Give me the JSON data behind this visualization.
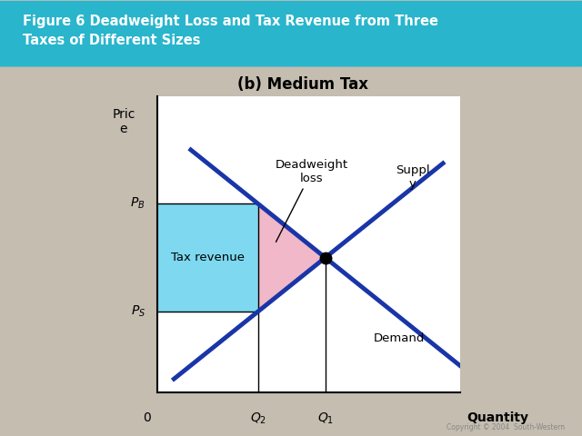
{
  "title_box_text": "Figure 6 Deadweight Loss and Tax Revenue from Three\nTaxes of Different Sizes",
  "subtitle": "(b) Medium Tax",
  "title_bg_color": "#29b5cc",
  "title_text_color": "#ffffff",
  "bg_color": "#c4bdb0",
  "plot_bg_color": "#f0f0f0",
  "plot_inner_color": "#ffffff",
  "ylabel": "Pric\ne",
  "xlabel": "Quantity",
  "supply_color": "#1a35a8",
  "demand_color": "#1a35a8",
  "tax_revenue_color": "#7dd8f0",
  "deadweight_color": "#f0b8c8",
  "equilibrium_x": 5.0,
  "equilibrium_y": 5.0,
  "Q2": 3.0,
  "PB": 7.0,
  "PS": 3.0,
  "x_min": 0,
  "x_max": 9,
  "y_min": 0,
  "y_max": 11,
  "copyright": "Copyright © 2004  South-Western"
}
